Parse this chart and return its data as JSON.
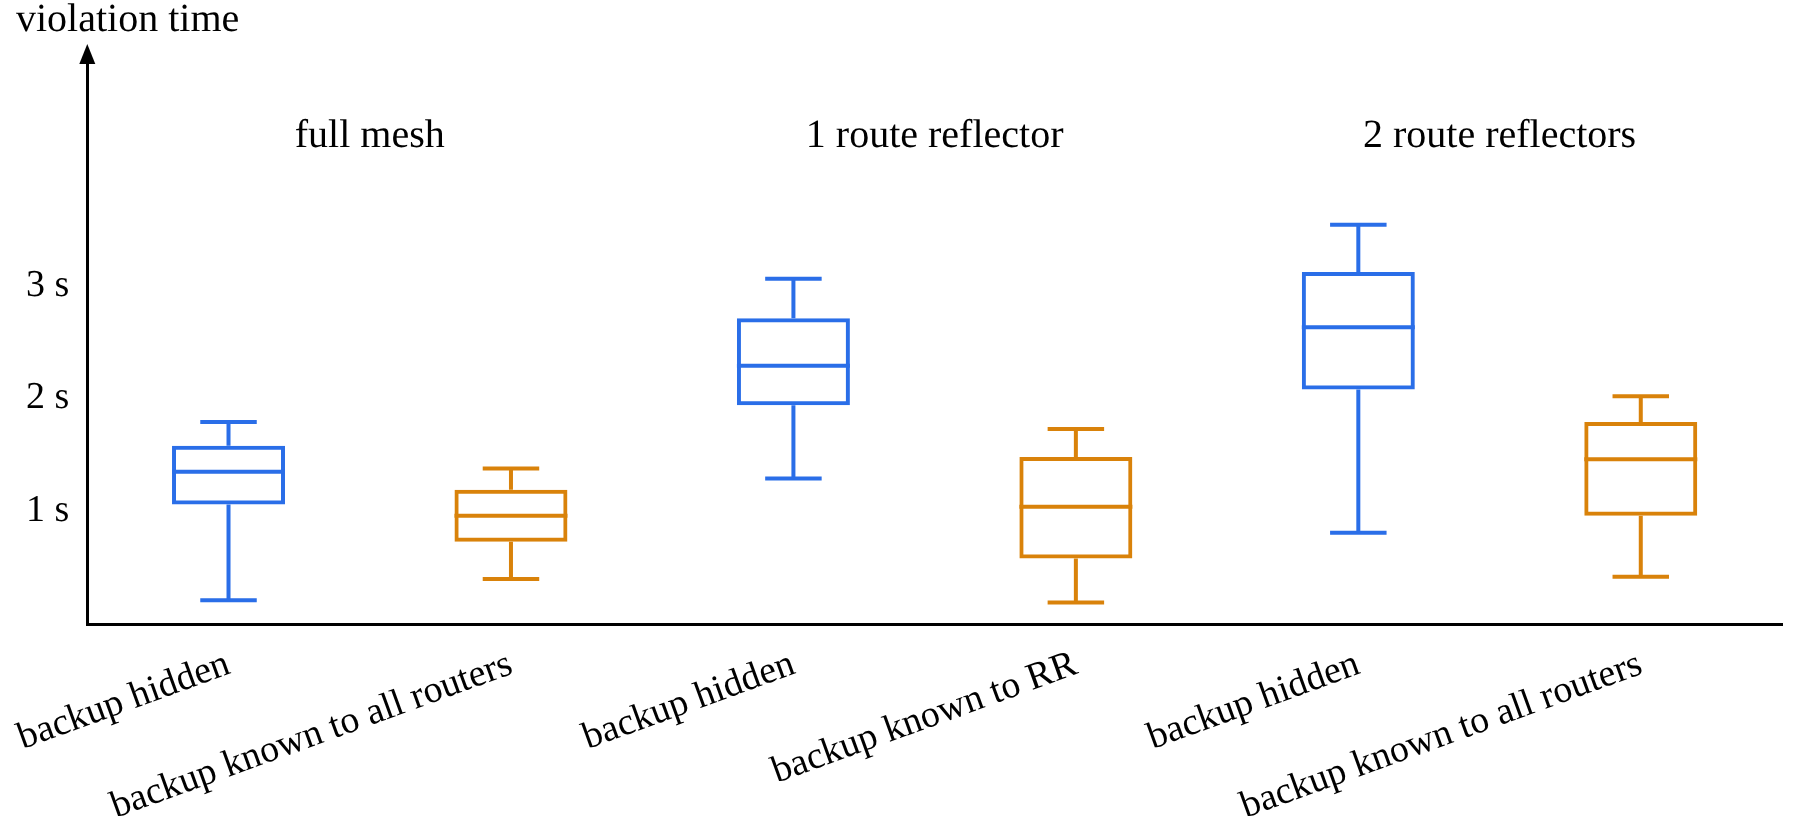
{
  "chart_data": {
    "type": "box",
    "ylabel": "violation time",
    "categories": [
      "backup hidden",
      "backup known to all routers",
      "backup hidden",
      "backup known to RR",
      "backup hidden",
      "backup known to all routers"
    ],
    "series": [
      {
        "color": "#2a6ee8",
        "boxes": [
          {
            "low": 0.21,
            "q1": 1.06,
            "median": 1.35,
            "q3": 1.58,
            "high": 1.79
          },
          null,
          {
            "low": 1.29,
            "q1": 1.94,
            "median": 2.29,
            "q3": 2.71,
            "high": 3.06
          },
          null,
          {
            "low": 0.81,
            "q1": 2.08,
            "median": 2.63,
            "q3": 3.12,
            "high": 3.54
          },
          null
        ]
      },
      {
        "color": "#d9820a",
        "boxes": [
          null,
          {
            "low": 0.4,
            "q1": 0.73,
            "median": 0.96,
            "q3": 1.19,
            "high": 1.38
          },
          null,
          {
            "low": 0.19,
            "q1": 0.58,
            "median": 1.04,
            "q3": 1.48,
            "high": 1.73
          },
          null,
          {
            "low": 0.42,
            "q1": 0.96,
            "median": 1.46,
            "q3": 1.79,
            "high": 2.02
          }
        ]
      }
    ],
    "ylim": [
      0,
      5
    ],
    "yticks": [
      {
        "value": 1,
        "label": "1 s"
      },
      {
        "value": 2,
        "label": "2 s"
      },
      {
        "value": 3,
        "label": "3 s"
      }
    ],
    "annotations": [
      "full mesh",
      "1 route reflector",
      "2 route reflectors"
    ],
    "grid": false,
    "legend": false
  }
}
